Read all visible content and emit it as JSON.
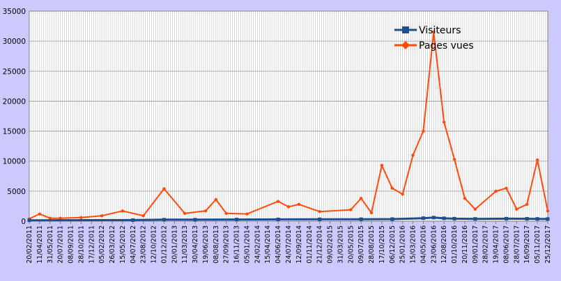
{
  "chart_data": {
    "type": "line",
    "title": "",
    "xlabel": "",
    "ylabel": "",
    "ylim": [
      0,
      35000
    ],
    "yticks": [
      0,
      5000,
      10000,
      15000,
      20000,
      25000,
      30000,
      35000
    ],
    "grid": true,
    "legend_position": "top-right",
    "x_tick_labels": [
      "20/02/2011",
      "11/04/2011",
      "31/05/2011",
      "20/07/2011",
      "08/09/2011",
      "28/10/2011",
      "17/12/2011",
      "05/02/2012",
      "26/03/2012",
      "15/05/2012",
      "04/07/2012",
      "23/08/2012",
      "12/10/2012",
      "01/12/2012",
      "20/01/2013",
      "11/03/2013",
      "30/04/2013",
      "19/06/2013",
      "08/08/2013",
      "27/09/2013",
      "16/11/2013",
      "05/01/2014",
      "24/02/2014",
      "15/04/2014",
      "04/06/2014",
      "24/07/2014",
      "12/09/2014",
      "01/11/2014",
      "21/12/2014",
      "09/02/2015",
      "31/03/2015",
      "20/05/2015",
      "09/07/2015",
      "28/08/2015",
      "17/10/2015",
      "06/12/2015",
      "25/01/2016",
      "15/03/2016",
      "04/05/2016",
      "23/06/2016",
      "12/08/2016",
      "01/10/2016",
      "20/11/2016",
      "09/01/2017",
      "28/02/2017",
      "19/04/2017",
      "08/06/2017",
      "28/07/2017",
      "16/09/2017",
      "05/11/2017",
      "25/12/2017"
    ],
    "series": [
      {
        "name": "Visiteurs",
        "color": "#1f4e8c",
        "x": [
          "20/02/2011",
          "04/07/2012",
          "01/12/2012",
          "30/04/2013",
          "16/11/2013",
          "04/06/2014",
          "21/12/2014",
          "09/07/2015",
          "06/12/2015",
          "04/05/2016",
          "23/06/2016",
          "12/08/2016",
          "01/10/2016",
          "09/01/2017",
          "08/06/2017",
          "16/09/2017",
          "05/11/2017",
          "25/12/2017"
        ],
        "values": [
          150,
          180,
          250,
          250,
          280,
          300,
          320,
          330,
          350,
          500,
          600,
          480,
          420,
          380,
          420,
          400,
          380,
          360
        ]
      },
      {
        "name": "Pages vues",
        "color": "#ff4a0a",
        "x": [
          "20/02/2011",
          "11/04/2011",
          "31/05/2011",
          "20/07/2011",
          "28/10/2011",
          "05/02/2012",
          "15/05/2012",
          "23/08/2012",
          "01/12/2012",
          "11/03/2013",
          "19/06/2013",
          "08/08/2013",
          "27/09/2013",
          "05/01/2014",
          "04/06/2014",
          "24/07/2014",
          "12/09/2014",
          "21/12/2014",
          "20/05/2015",
          "09/07/2015",
          "28/08/2015",
          "17/10/2015",
          "06/12/2015",
          "25/01/2016",
          "15/03/2016",
          "04/05/2016",
          "23/06/2016",
          "12/08/2016",
          "01/10/2016",
          "20/11/2016",
          "09/01/2017",
          "19/04/2017",
          "08/06/2017",
          "28/07/2017",
          "16/09/2017",
          "05/11/2017",
          "25/12/2017"
        ],
        "values": [
          400,
          1200,
          500,
          500,
          600,
          900,
          1700,
          900,
          5400,
          1300,
          1700,
          3600,
          1300,
          1200,
          3300,
          2400,
          2800,
          1600,
          1900,
          3800,
          1400,
          9300,
          5500,
          4500,
          11000,
          15000,
          31500,
          16500,
          10300,
          3800,
          2000,
          5000,
          5500,
          2000,
          2800,
          10200,
          1700
        ]
      }
    ]
  }
}
